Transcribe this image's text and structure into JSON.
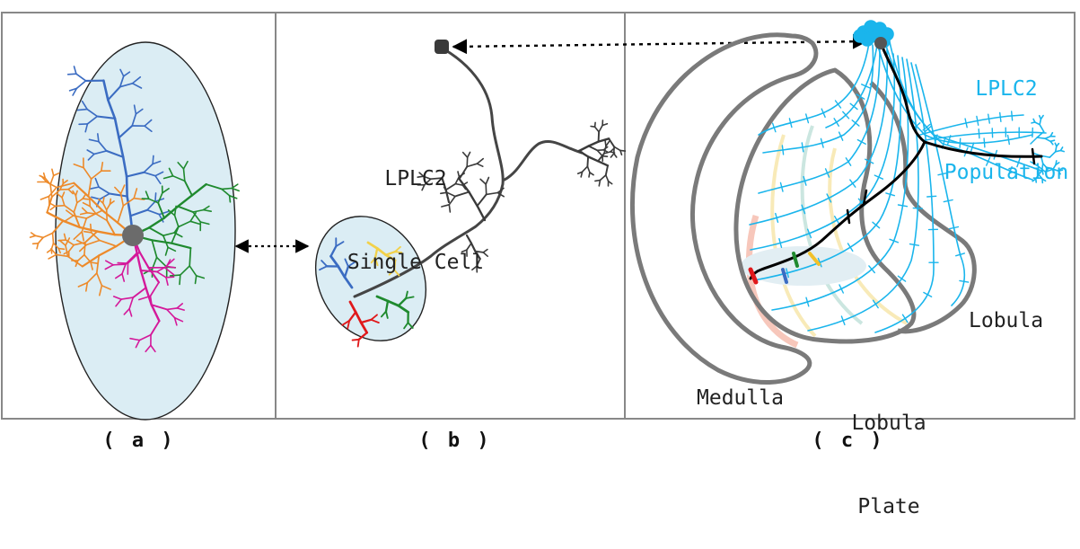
{
  "captions": {
    "a": "( a )",
    "b": "( b )",
    "c": "( c )"
  },
  "labels": {
    "single_cell_line1": "LPLC2",
    "single_cell_line2": "Single Cell",
    "population_line1": "LPLC2",
    "population_line2": "Population",
    "lobula": "Lobula",
    "lobula_plate_line1": "Lobula",
    "lobula_plate_line2": "Plate",
    "medulla": "Medulla"
  },
  "colors": {
    "panel_border": "#888888",
    "ellipse_fill": "#dbedf4",
    "blue_branch": "#3b6cc2",
    "orange_branch": "#ed8a2a",
    "green_branch": "#1f8a2e",
    "magenta_branch": "#d4199a",
    "yellow_branch": "#f2d14a",
    "red_branch": "#e0191b",
    "neuron": "#454545",
    "population": "#1ab5ec",
    "outline": "#7a7a7a"
  }
}
